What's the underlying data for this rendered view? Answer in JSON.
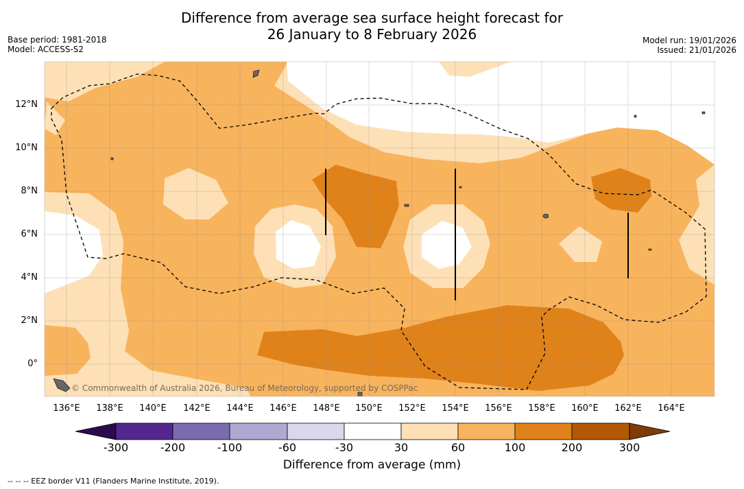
{
  "title_line1": "Difference from average sea surface height forecast for",
  "title_line2": "26 January to 8 February 2026",
  "base_period": "Base period: 1981-2018",
  "model": "Model: ACCESS-S2",
  "model_run": "Model run: 19/01/2026",
  "issued": "Issued: 21/01/2026",
  "copyright": "© Commonwealth of Australia 2026, Bureau of Meteorology, supported by COSPPac",
  "x_ticks": [
    "136°E",
    "138°E",
    "140°E",
    "142°E",
    "144°E",
    "146°E",
    "148°E",
    "150°E",
    "152°E",
    "154°E",
    "156°E",
    "158°E",
    "160°E",
    "162°E",
    "164°E"
  ],
  "y_ticks": [
    "12°N",
    "10°N",
    "8°N",
    "6°N",
    "4°N",
    "2°N",
    "0°"
  ],
  "colorbar": {
    "labels": [
      "-300",
      "-200",
      "-100",
      "-60",
      "-30",
      "30",
      "60",
      "100",
      "200",
      "300"
    ],
    "colors": {
      "below_min": "#2d0a4e",
      "n300_n200": "#54278f",
      "n200_n100": "#7b6bb0",
      "n100_n60": "#aea8d3",
      "n60_n30": "#d9d8ec",
      "n30_30": "#ffffff",
      "p30_60": "#fde0b6",
      "p60_100": "#f8b35d",
      "p100_200": "#e0821a",
      "p200_300": "#b35806",
      "above_max": "#7f3b08"
    },
    "title": "Difference from average (mm)"
  },
  "footnote": "-- -- -- EEZ border V11 (Flanders Marine Institute, 2019)."
}
